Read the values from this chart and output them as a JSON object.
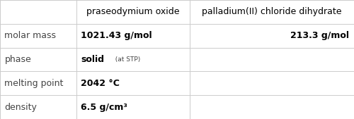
{
  "col_headers": [
    "",
    "praseodymium oxide",
    "palladium(II) chloride dihydrate"
  ],
  "rows": [
    {
      "label": "molar mass",
      "col1": "1021.43 g/mol",
      "col1_bold": true,
      "col2": "213.3 g/mol",
      "col2_align": "right",
      "col2_bold": true
    },
    {
      "label": "phase",
      "col1_main": "solid",
      "col1_main_bold": true,
      "col1_sub": "  (at STP)",
      "col2": "",
      "col2_align": "left"
    },
    {
      "label": "melting point",
      "col1": "2042 °C",
      "col1_bold": true,
      "col2": "",
      "col2_align": "left"
    },
    {
      "label": "density",
      "col1": "6.5 g/cm³",
      "col1_bold": true,
      "col2": "",
      "col2_align": "left"
    }
  ],
  "col_boundaries": [
    0.0,
    0.215,
    0.535,
    1.0
  ],
  "grid_color": "#cccccc",
  "text_color": "#000000",
  "label_color": "#444444",
  "font_size": 9.0,
  "header_font_size": 9.0,
  "small_font_size": 6.5,
  "background_color": "#ffffff",
  "lw": 0.7
}
